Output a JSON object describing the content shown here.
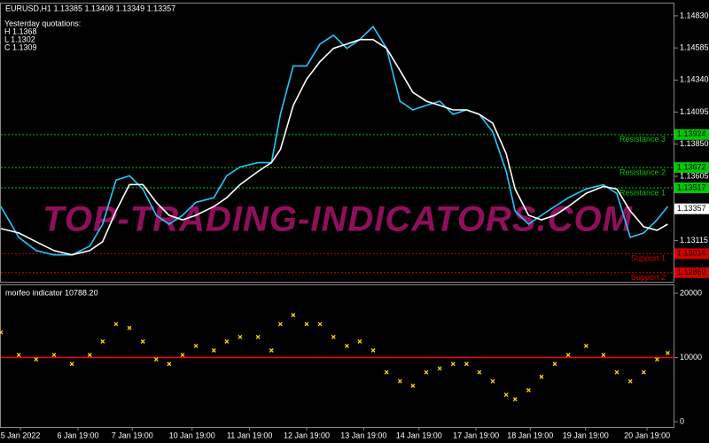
{
  "chart_data": [
    {
      "type": "line",
      "title": "EURUSD,H1  1.13385 1.13408 1.13349 1.13357",
      "annotations": [
        "Yesterday quotations:",
        "H 1.1368",
        "L 1.1302",
        "C 1.1309"
      ],
      "watermark": "TOP-TRADING-INDICATORS.COM",
      "xlim": [
        -0.35,
        11.7
      ],
      "ylim": [
        1.128,
        1.14924
      ],
      "yticks": [
        {
          "value": 1.1483,
          "label": "1.14830"
        },
        1.14585,
        {
          "value": 1.1434,
          "label": "1.14340"
        },
        1.14095,
        {
          "value": 1.1385,
          "label": "1.13850"
        },
        1.13605,
        1.13115
      ],
      "x": [
        -0.35,
        -0.03,
        0.28,
        0.6,
        0.92,
        1.24,
        1.47,
        1.71,
        1.95,
        2.19,
        2.43,
        2.66,
        2.9,
        3.14,
        3.46,
        3.69,
        3.93,
        4.25,
        4.49,
        4.65,
        4.88,
        5.12,
        5.36,
        5.6,
        5.84,
        6.07,
        6.31,
        6.55,
        6.79,
        7.02,
        7.26,
        7.5,
        7.74,
        7.98,
        8.21,
        8.45,
        8.69,
        8.85,
        9.09,
        9.32,
        9.56,
        9.8,
        10.12,
        10.43,
        10.67,
        10.91,
        11.15,
        11.39,
        11.58
      ],
      "series": [
        {
          "color": "#22c8ff",
          "values": [
            1.13374,
            1.13139,
            1.13038,
            1.13005,
            1.13005,
            1.13072,
            1.1324,
            1.13575,
            1.13609,
            1.13508,
            1.13307,
            1.1324,
            1.13307,
            1.13407,
            1.13441,
            1.13609,
            1.13676,
            1.13709,
            1.13709,
            1.14078,
            1.14448,
            1.14448,
            1.14615,
            1.14682,
            1.14582,
            1.14649,
            1.14749,
            1.14582,
            1.14179,
            1.14112,
            1.14146,
            1.14179,
            1.14078,
            1.14112,
            1.14078,
            1.13944,
            1.13642,
            1.1334,
            1.1324,
            1.13307,
            1.13374,
            1.13441,
            1.13508,
            1.13541,
            1.13474,
            1.13139,
            1.13173,
            1.13273,
            1.13374
          ]
        },
        {
          "color": "#ffffff",
          "values": [
            1.13206,
            1.13173,
            1.13106,
            1.13038,
            1.13005,
            1.13038,
            1.13106,
            1.1334,
            1.13542,
            1.13542,
            1.13407,
            1.13307,
            1.13273,
            1.13307,
            1.13374,
            1.13441,
            1.13542,
            1.13642,
            1.13709,
            1.1381,
            1.14146,
            1.14347,
            1.14481,
            1.14582,
            1.14615,
            1.14649,
            1.14649,
            1.14582,
            1.14414,
            1.14246,
            1.14179,
            1.14146,
            1.14112,
            1.14112,
            1.14078,
            1.14011,
            1.13777,
            1.13508,
            1.13307,
            1.13273,
            1.13307,
            1.13374,
            1.13475,
            1.13528,
            1.13508,
            1.1334,
            1.1322,
            1.13193,
            1.1324
          ]
        }
      ],
      "levels": [
        {
          "name": "Resistance 3",
          "value": 1.13924,
          "color": "#00c800"
        },
        {
          "name": "Resistance 2",
          "value": 1.13672,
          "color": "#00c800"
        },
        {
          "name": "Resistance 1",
          "value": 1.13517,
          "color": "#00c800"
        },
        {
          "name": "Support 1",
          "value": 1.13014,
          "color": "#d40000"
        },
        {
          "name": "Support 2",
          "value": 1.12869,
          "color": "#d40000"
        }
      ],
      "current_price": 1.13357
    },
    {
      "type": "scatter",
      "title": "morfeo indicator 10788.20",
      "color": "#ffd700",
      "xlim": [
        -0.35,
        11.7
      ],
      "ylim": [
        -830,
        21240
      ],
      "yticks": [
        20000,
        10000,
        0
      ],
      "level": {
        "value": 10000,
        "color": "#ff0000"
      },
      "xticks": [
        {
          "value": 0,
          "label": "5 Jan 2022"
        },
        {
          "value": 1.03,
          "label": "6 Jan 19:00"
        },
        {
          "value": 2,
          "label": "7 Jan 19:00"
        },
        {
          "value": 3.07,
          "label": "10 Jan 19:00"
        },
        {
          "value": 4.1,
          "label": "11 Jan 19:00"
        },
        {
          "value": 5.12,
          "label": "12 Jan 19:00"
        },
        {
          "value": 6.14,
          "label": "13 Jan 19:00"
        },
        {
          "value": 7.13,
          "label": "14 Jan 19:00"
        },
        {
          "value": 8.15,
          "label": "17 Jan 19:00"
        },
        {
          "value": 9.12,
          "label": "18 Jan 19:00"
        },
        {
          "value": 10.11,
          "label": "19 Jan 19:00"
        },
        {
          "value": 11.21,
          "label": "20 Jan 19:00"
        }
      ],
      "x": [
        -0.35,
        -0.03,
        0.28,
        0.6,
        0.92,
        1.24,
        1.47,
        1.71,
        1.95,
        2.19,
        2.43,
        2.66,
        2.9,
        3.14,
        3.46,
        3.69,
        3.93,
        4.25,
        4.49,
        4.65,
        4.88,
        5.12,
        5.36,
        5.6,
        5.84,
        6.07,
        6.31,
        6.55,
        6.79,
        7.02,
        7.26,
        7.5,
        7.74,
        7.98,
        8.21,
        8.45,
        8.69,
        8.85,
        9.09,
        9.32,
        9.56,
        9.8,
        10.12,
        10.43,
        10.67,
        10.91,
        11.15,
        11.39,
        11.58
      ],
      "values": [
        13900,
        10400,
        9700,
        10400,
        9000,
        10400,
        12500,
        15200,
        14600,
        12500,
        9700,
        9000,
        10400,
        11800,
        11100,
        12500,
        13200,
        13200,
        11100,
        15200,
        16600,
        15200,
        15200,
        13200,
        11800,
        12500,
        11100,
        7700,
        6300,
        5600,
        7700,
        8300,
        9000,
        9000,
        7700,
        6300,
        4200,
        3500,
        4900,
        7000,
        9000,
        10400,
        11800,
        10400,
        7700,
        6300,
        7700,
        9700,
        10700
      ]
    }
  ]
}
